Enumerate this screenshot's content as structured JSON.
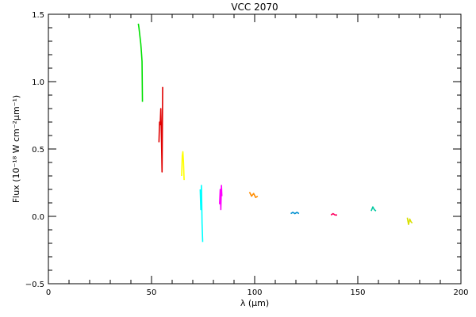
{
  "chart_data": {
    "type": "line",
    "title": "VCC 2070",
    "xlabel": "λ (μm)",
    "ylabel": "Flux (10⁻¹⁸ W cm⁻²μm⁻¹)",
    "xlim": [
      0,
      200
    ],
    "ylim": [
      -0.5,
      1.5
    ],
    "grid": false,
    "legend": "none",
    "xticks": [
      "0",
      "50",
      "100",
      "150",
      "200"
    ],
    "yticks": [
      "−0.5",
      "0.0",
      "0.5",
      "1.0",
      "1.5"
    ],
    "series": [
      {
        "color": "#00e000",
        "x": [
          43.6,
          43.9,
          44.2,
          44.5,
          44.8,
          45.1,
          45.4,
          45.6
        ],
        "y": [
          1.43,
          1.4,
          1.36,
          1.32,
          1.28,
          1.22,
          1.15,
          0.85
        ]
      },
      {
        "color": "#e00000",
        "x": [
          53.6,
          53.9,
          54.2,
          54.5,
          54.8,
          55.1,
          55.4
        ],
        "y": [
          0.55,
          0.7,
          0.68,
          0.8,
          0.6,
          0.33,
          0.96
        ]
      },
      {
        "color": "#ffff00",
        "x": [
          64.6,
          64.9,
          65.2,
          65.5,
          65.8
        ],
        "y": [
          0.3,
          0.45,
          0.48,
          0.4,
          0.27
        ]
      },
      {
        "color": "#00ffff",
        "x": [
          73.6,
          73.9,
          74.2,
          74.5,
          74.8
        ],
        "y": [
          0.2,
          0.05,
          0.23,
          -0.05,
          -0.19
        ]
      },
      {
        "color": "#ff00ff",
        "x": [
          83.0,
          83.3,
          83.6,
          83.9,
          84.1
        ],
        "y": [
          0.09,
          0.2,
          0.05,
          0.23,
          0.15
        ]
      },
      {
        "color": "#ff8c00",
        "x": [
          97.5,
          98.5,
          99.5,
          100.5,
          101.5
        ],
        "y": [
          0.18,
          0.15,
          0.17,
          0.14,
          0.15
        ]
      },
      {
        "color": "#0090d0",
        "x": [
          117.5,
          118.5,
          119.5,
          120.5,
          121.5
        ],
        "y": [
          0.02,
          0.03,
          0.02,
          0.03,
          0.02
        ]
      },
      {
        "color": "#ff0060",
        "x": [
          137.0,
          138.0,
          139.0,
          140.0
        ],
        "y": [
          0.01,
          0.02,
          0.01,
          0.01
        ]
      },
      {
        "color": "#00c8a0",
        "x": [
          156.5,
          157.3,
          158.0,
          158.8
        ],
        "y": [
          0.04,
          0.07,
          0.05,
          0.04
        ]
      },
      {
        "color": "#d8e000",
        "x": [
          174.0,
          174.6,
          175.2,
          175.8,
          176.4
        ],
        "y": [
          -0.01,
          -0.06,
          -0.02,
          -0.04,
          -0.05
        ]
      }
    ]
  }
}
